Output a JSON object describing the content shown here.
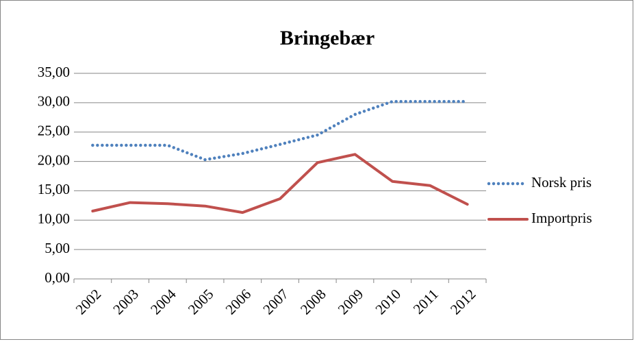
{
  "chart_data": {
    "type": "line",
    "title": "Bringebær",
    "categories": [
      "2002",
      "2003",
      "2004",
      "2005",
      "2006",
      "2007",
      "2008",
      "2009",
      "2010",
      "2011",
      "2012"
    ],
    "series": [
      {
        "name": "Norsk pris",
        "color": "#4f81bd",
        "style": "dotted",
        "values": [
          22.75,
          22.75,
          22.75,
          20.3,
          21.35,
          22.9,
          24.5,
          28.0,
          30.2,
          30.2,
          30.2
        ]
      },
      {
        "name": "Importpris",
        "color": "#c0504d",
        "style": "solid",
        "values": [
          11.55,
          13.0,
          12.8,
          12.4,
          11.3,
          13.65,
          19.8,
          21.2,
          16.6,
          15.9,
          12.7
        ]
      }
    ],
    "ylim": [
      0,
      35
    ],
    "yticks": [
      {
        "value": 0,
        "label": "0,00"
      },
      {
        "value": 5,
        "label": "5,00"
      },
      {
        "value": 10,
        "label": "10,00"
      },
      {
        "value": 15,
        "label": "15,00"
      },
      {
        "value": 20,
        "label": "20,00"
      },
      {
        "value": 25,
        "label": "25,00"
      },
      {
        "value": 30,
        "label": "30,00"
      },
      {
        "value": 35,
        "label": "35,00"
      }
    ],
    "grid": true,
    "legend": "right"
  }
}
